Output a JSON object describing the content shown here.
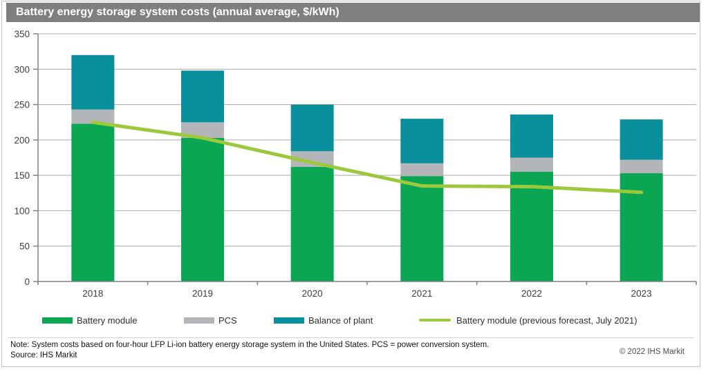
{
  "title": "Battery energy storage system costs (annual average, $/kWh)",
  "footer": {
    "note": "Note: System costs based on four-hour LFP Li-ion battery energy storage system in the United States. PCS = power conversion system.",
    "source": "Source: IHS Markit",
    "copyright": "© 2022 IHS Markit"
  },
  "colors": {
    "title_bar_bg": "#7f7f7f",
    "title_text": "#ffffff",
    "battery_module": "#0ba653",
    "pcs": "#b3b5b8",
    "balance_of_plant": "#0a8f9c",
    "forecast_line": "#9cc93c",
    "gridline": "#a8a8a8",
    "axis": "#808080",
    "axis_text": "#3d3d3d"
  },
  "chart_data": {
    "type": "bar",
    "stacked": true,
    "title": "Battery energy storage system costs (annual average, $/kWh)",
    "xlabel": "",
    "ylabel": "",
    "ylim": [
      0,
      350
    ],
    "ytick_interval": 50,
    "yticks": [
      0,
      50,
      100,
      150,
      200,
      250,
      300,
      350
    ],
    "grid": true,
    "legend_position": "bottom",
    "categories": [
      "2018",
      "2019",
      "2020",
      "2021",
      "2022",
      "2023"
    ],
    "series": [
      {
        "name": "Battery module",
        "type": "bar",
        "color": "#0ba653",
        "values": [
          223,
          203,
          162,
          149,
          155,
          153
        ]
      },
      {
        "name": "PCS",
        "type": "bar",
        "color": "#b3b5b8",
        "values": [
          20,
          22,
          22,
          18,
          20,
          19
        ]
      },
      {
        "name": "Balance of plant",
        "type": "bar",
        "color": "#0a8f9c",
        "values": [
          77,
          73,
          66,
          63,
          61,
          57
        ]
      },
      {
        "name": "Battery module (previous forecast, July 2021)",
        "type": "line",
        "color": "#9cc93c",
        "values": [
          225,
          203,
          168,
          135,
          134,
          126
        ]
      }
    ],
    "stack_totals": [
      320,
      298,
      250,
      230,
      236,
      229
    ]
  }
}
